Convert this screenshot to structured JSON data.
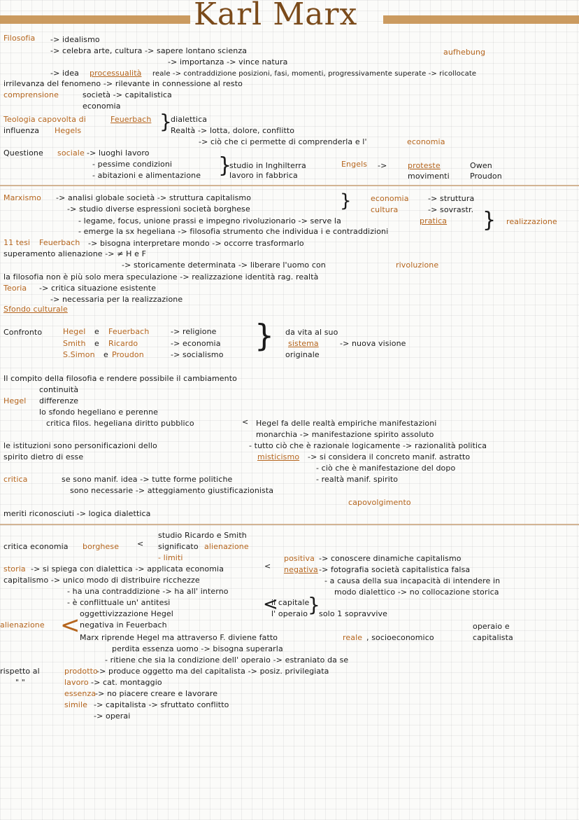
{
  "title": "Karl Marx",
  "section1": {
    "line1a": "Filosofia",
    "line1b": "-> idealismo",
    "line2": "-> celebra arte, cultura -> sapere lontano scienza",
    "aufhebung": "aufhebung",
    "line3": "-> importanza -> vince natura",
    "line4a": "-> idea",
    "line4b": "processualità",
    "line4c": "reale -> contraddizione posizioni, fasi, momenti, progressivamente superate -> ricollocate",
    "line5": "irrilevanza del fenomeno -> rilevante in connessione al resto",
    "line6a": "comprensione",
    "line6b": "società   -> capitalistica",
    "line7": "economia",
    "line8a": "Teologia capovolta di",
    "line8b": "Feuerbach",
    "line8c": "dialettica",
    "line9a": "influenza",
    "line9b": "Hegels",
    "line9c": "Realtà -> lotta, dolore, conflitto",
    "line10a": "-> ciò che ci permette di comprenderla e l'",
    "line10b": "economia",
    "line11a": "Questione",
    "line11b": "sociale",
    "line11c": "-> luoghi lavoro",
    "line12": "- pessime condizioni",
    "line12b": "studio in Inghilterra",
    "line12c": "Engels",
    "line12d": "->",
    "line12e": "proteste",
    "line12f": "Owen",
    "line13": "- abitazioni e alimentazione",
    "line13b": "lavoro in fabbrica",
    "line13c": "movimenti",
    "line13d": "Proudon"
  },
  "section2": {
    "l1a": "Marxismo",
    "l1b": "-> analisi globale società -> struttura capitalismo",
    "l1c": "economia",
    "l1d": "-> struttura",
    "l2a": "-> studio diverse espressioni società borghese",
    "l2b": "cultura",
    "l2c": "-> sovrastr.",
    "l3": "- legame, focus, unione prassi e impegno rivoluzionario -> serve la",
    "l3b": "pratica",
    "l3c": "realizzazione",
    "l4": "- emerge la sx hegeliana -> filosofia strumento che individua i e contraddizioni",
    "l5a": "11 tesi",
    "l5b": "Feuerbach",
    "l5c": "-> bisogna interpretare mondo    ->    occorre trasformarlo",
    "l6": "superamento alienazione -> ≠ H e F",
    "l7a": "-> storicamente determinata -> liberare l'uomo con",
    "l7b": "rivoluzione",
    "l8": "la filosofia non è più solo mera speculazione -> realizzazione identità rag. realtà",
    "l9a": "Teoria",
    "l9b": "-> critica situazione esistente",
    "l10": "-> necessaria per la realizzazione",
    "l11": "Sfondo culturale",
    "c1a": "Confronto",
    "c1b": "Hegel",
    "c1c": "e",
    "c1d": "Feuerbach",
    "c1e": "-> religione",
    "c1f": "da vita al suo",
    "c2a": "Smith",
    "c2b": "e",
    "c2c": "Ricardo",
    "c2d": "-> economia",
    "c2e": "sistema",
    "c2f": "-> nuova visione",
    "c3a": "S.Simon",
    "c3b": "e",
    "c3c": "Proudon",
    "c3d": "-> socialismo",
    "c3e": "originale",
    "h1": "Il compito della filosofia e rendere possibile il cambiamento",
    "h2": "continuità",
    "h3a": "Hegel",
    "h3b": "differenze",
    "h4": "lo sfondo hegeliano e perenne",
    "h5": "critica filos. hegeliana  diritto pubblico",
    "h5b": "Hegel fa delle realtà empiriche manifestazioni",
    "h6": "monarchia -> manifestazione spirito assoluto",
    "h7a": "le istituzioni sono personificazioni dello",
    "h7b": "- tutto ciò che è razionale logicamente -> razionalità politica",
    "h8a": "spirito dietro di esse",
    "h8b": "misticismo",
    "h8c": "-> si considera il concreto manif. astratto",
    "h9": "- ciò che è manifestazione del dopo",
    "h10a": "critica",
    "h10b": "se sono manif. idea -> tutte forme politiche",
    "h10c": "- realtà manif. spirito",
    "h11": "sono necessarie -> atteggiamento giustificazionista",
    "h12": "capovolgimento",
    "h13": "meriti riconosciuti -> logica dialettica"
  },
  "section3": {
    "a1": "studio   Ricardo e Smith",
    "a2a": "critica economia",
    "a2b": "borghese",
    "a2c": "significato",
    "a2d": "alienazione",
    "a3": "- limiti",
    "a3b": "positiva",
    "a3c": "-> conoscere dinamiche capitalismo",
    "a4a": "storia",
    "a4b": "-> si spiega con dialettica -> applicata economia",
    "a4c": "negativa",
    "a4d": "-> fotografia società capitalistica falsa",
    "a5": "capitalismo -> unico modo di distribuire ricchezze",
    "a5b": "- a causa della sua incapacità di intendere in",
    "a6": "- ha una contraddizione  ->  ha all' interno",
    "a6b": "modo dialettico -> no collocazione storica",
    "a7": "- è conflittuale              un' antitesi",
    "a7b": "il capitale",
    "a8": "l' operaio",
    "a8b": "solo 1 sopravvive",
    "a9": "oggettivizzazione Hegel",
    "a10a": "alienazione",
    "a10b": "negativa in Feuerbach",
    "a10c": "operaio e",
    "a11": "Marx riprende Hegel ma attraverso  F.  diviene fatto",
    "a11b": "reale",
    "a11c": ", socioeconomico",
    "a11d": "capitalista",
    "a12": "perdita essenza uomo -> bisogna superarla",
    "a13": "- ritiene che sia la condizione dell' operaio -> estraniato da se",
    "a14a": "rispetto al",
    "a14b": "prodotto",
    "a14c": "-> produce oggetto ma del capitalista -> posiz. privilegiata",
    "a15a": "\"     \"",
    "a15b": "lavoro",
    "a15c": "-> cat. montaggio",
    "a16a": "essenza",
    "a16b": "-> no piacere creare e lavorare",
    "a17a": "simile",
    "a17b": "-> capitalista -> sfruttato    conflitto",
    "a18": "-> operai"
  }
}
